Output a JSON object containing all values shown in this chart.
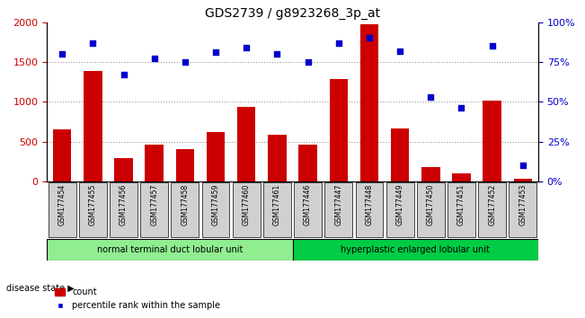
{
  "title": "GDS2739 / g8923268_3p_at",
  "categories": [
    "GSM177454",
    "GSM177455",
    "GSM177456",
    "GSM177457",
    "GSM177458",
    "GSM177459",
    "GSM177460",
    "GSM177461",
    "GSM177446",
    "GSM177447",
    "GSM177448",
    "GSM177449",
    "GSM177450",
    "GSM177451",
    "GSM177452",
    "GSM177453"
  ],
  "bar_values": [
    650,
    1390,
    290,
    460,
    400,
    620,
    940,
    580,
    460,
    1290,
    1980,
    660,
    180,
    95,
    1010,
    30
  ],
  "scatter_values": [
    80,
    87,
    67,
    77,
    75,
    81,
    84,
    80,
    75,
    87,
    90,
    82,
    53,
    46,
    85,
    10
  ],
  "bar_color": "#cc0000",
  "scatter_color": "#0000cc",
  "left_ylim": [
    0,
    2000
  ],
  "right_ylim": [
    0,
    100
  ],
  "left_yticks": [
    0,
    500,
    1000,
    1500,
    2000
  ],
  "right_yticks": [
    0,
    25,
    50,
    75,
    100
  ],
  "right_yticklabels": [
    "0%",
    "25%",
    "50%",
    "75%",
    "100%"
  ],
  "group1_label": "normal terminal duct lobular unit",
  "group2_label": "hyperplastic enlarged lobular unit",
  "group1_count": 8,
  "group2_count": 8,
  "group1_color": "#90ee90",
  "group2_color": "#00cc44",
  "disease_state_label": "disease state",
  "legend_bar_label": "count",
  "legend_scatter_label": "percentile rank within the sample",
  "xlabel": "",
  "ylabel_left": "",
  "ylabel_right": "",
  "grid_color": "#999999",
  "tick_bg_color": "#d0d0d0",
  "figsize": [
    6.51,
    3.54
  ],
  "dpi": 100
}
